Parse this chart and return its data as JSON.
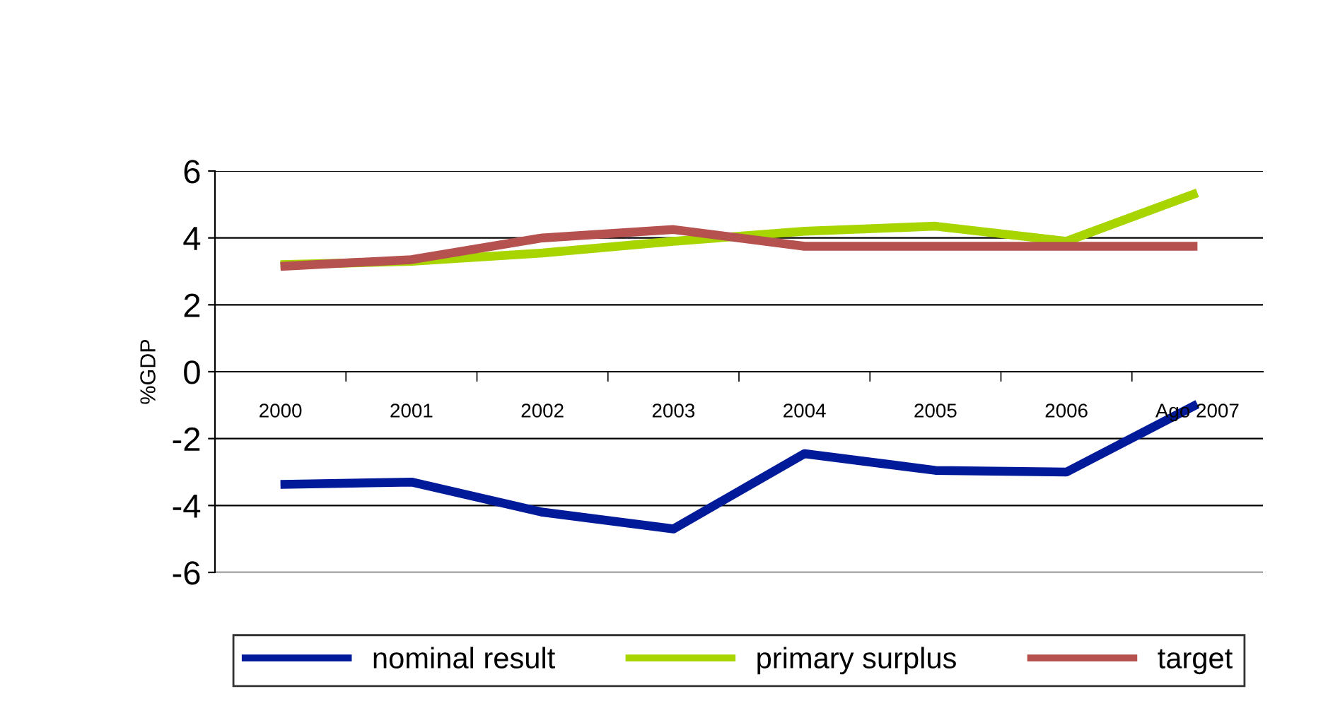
{
  "chart_data": {
    "type": "line",
    "ylabel": "%GDP",
    "categories": [
      "2000",
      "2001",
      "2002",
      "2003",
      "2004",
      "2005",
      "2006",
      "Ago 2007"
    ],
    "series": [
      {
        "name": "nominal result",
        "color": "#001a99",
        "values": [
          -3.37,
          -3.3,
          -4.2,
          -4.7,
          -2.45,
          -2.95,
          -3.0,
          -0.97
        ]
      },
      {
        "name": "primary surplus",
        "color": "#a8d400",
        "values": [
          3.2,
          3.3,
          3.55,
          3.9,
          4.2,
          4.35,
          3.9,
          5.35
        ]
      },
      {
        "name": "target",
        "color": "#b5514e",
        "values": [
          3.15,
          3.35,
          4.0,
          4.25,
          3.75,
          3.75,
          3.75,
          3.75
        ]
      }
    ],
    "ylim": [
      -6,
      6
    ],
    "yticks": [
      -6,
      -4,
      -2,
      0,
      2,
      4,
      6
    ],
    "grid": "y",
    "legend": "bottom",
    "marker": "none",
    "line_style": "solid"
  }
}
